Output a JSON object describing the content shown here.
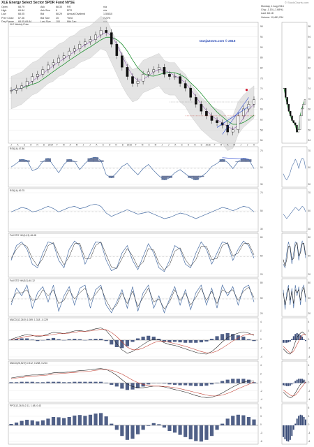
{
  "header": {
    "title": "XLE Energy Select Sector SPDR Fund NYSE",
    "watermark": "© StockCharts.com",
    "quote_rows": [
      [
        "Open",
        "68.79",
        "Ask",
        "68.30",
        "P/E",
        "n/a"
      ],
      [
        "High",
        "69.84",
        "Ask Size",
        "6",
        "EPS",
        "n/a"
      ],
      [
        "Low",
        "68.05",
        "Bid",
        "68.29",
        "Annual Dividend",
        "1.50810"
      ],
      [
        "Prev Close",
        "67.36",
        "Bid Size",
        "25",
        "Yield",
        "2.22%"
      ],
      [
        "Day Range",
        "68.05-69.84",
        "Last Size",
        "100",
        "Mkt Cap",
        "n/a"
      ]
    ],
    "right_quote": [
      "Monday, 1 Aug 2016",
      "Chg: -1.15 (-1.68%)",
      "Last: 68.18",
      "Volume: 19,481,234"
    ]
  },
  "overlay_tag": "DanjaZown.com © 2016",
  "panels": [
    {
      "label": "XLE Weekly Price",
      "ticks": [
        "98",
        "94",
        "90",
        "86",
        "82",
        "78",
        "74",
        "70",
        "66",
        "62",
        "58",
        "54"
      ]
    },
    {
      "label": "RSI(14) 47.86",
      "ticks": [
        "70",
        "50",
        "30"
      ]
    },
    {
      "label": "RSI(14) 49.75",
      "ticks": [
        "70",
        "50",
        "30"
      ]
    },
    {
      "label": "Full STO %K(14,3) 46.48",
      "ticks": [
        "80",
        "50",
        "20"
      ]
    },
    {
      "label": "Full STO %K(5,3) 40.12",
      "ticks": [
        "80",
        "50",
        "20"
      ]
    },
    {
      "label": "MACD(12,26,9) 1.089, 1.318, -0.229",
      "ticks": [
        "4",
        "2",
        "0",
        "-2",
        "-4"
      ]
    },
    {
      "label": "MACD(26,52,9) 0.512, 0.268, 0.244",
      "ticks": [
        "4",
        "2",
        "0",
        "-2",
        "-4"
      ]
    },
    {
      "label": "PPO(12,26,9) 2.11, 1.68, 0.43",
      "ticks": [
        "6",
        "3",
        "0",
        "-3",
        "-6"
      ]
    }
  ],
  "x_axis": {
    "months": [
      "J",
      "A",
      "S",
      "O",
      "N",
      "D",
      "2014",
      "F",
      "M",
      "A",
      "M",
      "J",
      "J",
      "A",
      "S",
      "O",
      "N",
      "D",
      "2015",
      "F",
      "M",
      "A",
      "M",
      "J",
      "J",
      "A",
      "S",
      "O",
      "N",
      "D",
      "2016",
      "F",
      "M",
      "A",
      "M",
      "J",
      "J",
      "A"
    ]
  },
  "chart_data": [
    {
      "type": "line",
      "title": "XLE Energy Select Sector SPDR Fund NYSE",
      "x": [
        0,
        8,
        16,
        24,
        32,
        40,
        48,
        56,
        64,
        72,
        80,
        88,
        96,
        104,
        112,
        120,
        128,
        136,
        144,
        152,
        160,
        168,
        176,
        184,
        192,
        200,
        208,
        216,
        224,
        232,
        240,
        248,
        256,
        264,
        272,
        280,
        288,
        296,
        304,
        312,
        320,
        328,
        336,
        344,
        352,
        360,
        368
      ],
      "series": [
        {
          "values": [
            73,
            74,
            75,
            77,
            79,
            80,
            82,
            84,
            85,
            87,
            88,
            90,
            91,
            93,
            94,
            95,
            97,
            99,
            98,
            93,
            88,
            83,
            79,
            76,
            77,
            80,
            81,
            82,
            83,
            80,
            79,
            79,
            76,
            74,
            70,
            67,
            64,
            62,
            60,
            59,
            58,
            55,
            56,
            62,
            65,
            67,
            69
          ]
        }
      ],
      "ylim": [
        52,
        100
      ]
    },
    {
      "type": "line",
      "title": "RSI(14) 47.86",
      "series": [
        {
          "values": [
            55,
            62,
            70,
            68,
            48,
            52,
            66,
            72,
            58,
            44,
            60,
            70,
            66,
            50,
            62,
            72,
            74,
            68,
            40,
            34,
            44,
            56,
            62,
            50,
            40,
            52,
            60,
            48,
            38,
            30,
            34,
            44,
            50,
            42,
            34,
            30,
            36,
            44,
            56,
            62,
            70,
            64,
            52,
            66,
            72,
            70,
            52
          ]
        }
      ],
      "ylim": [
        20,
        85
      ]
    },
    {
      "type": "line",
      "title": "RSI(14) 49.75",
      "series": [
        {
          "values": [
            52,
            56,
            60,
            58,
            52,
            54,
            58,
            62,
            58,
            52,
            56,
            60,
            62,
            58,
            60,
            64,
            66,
            62,
            50,
            44,
            48,
            52,
            56,
            52,
            48,
            50,
            52,
            48,
            44,
            40,
            42,
            46,
            50,
            48,
            44,
            40,
            44,
            48,
            52,
            56,
            60,
            58,
            54,
            58,
            62,
            60,
            52
          ]
        }
      ],
      "ylim": [
        20,
        85
      ]
    },
    {
      "type": "line",
      "title": "Full STO %K(14,3) 46.48",
      "series": [
        {
          "values": [
            40,
            80,
            90,
            70,
            30,
            20,
            60,
            90,
            85,
            40,
            20,
            70,
            92,
            80,
            30,
            60,
            90,
            88,
            40,
            12,
            20,
            60,
            80,
            40,
            15,
            50,
            85,
            60,
            20,
            10,
            40,
            80,
            70,
            30,
            20,
            60,
            90,
            70,
            30,
            60,
            90,
            85,
            40,
            70,
            92,
            80,
            46
          ]
        },
        {
          "values": [
            45,
            70,
            85,
            78,
            45,
            25,
            45,
            80,
            88,
            55,
            28,
            50,
            85,
            86,
            45,
            45,
            80,
            90,
            55,
            22,
            18,
            45,
            72,
            52,
            22,
            35,
            72,
            68,
            32,
            14,
            28,
            65,
            74,
            42,
            24,
            42,
            78,
            78,
            42,
            45,
            80,
            88,
            52,
            60,
            85,
            86,
            55
          ]
        }
      ],
      "ylim": [
        0,
        100
      ]
    },
    {
      "type": "line",
      "title": "Full STO %K(5,3) 40.12",
      "series": [
        {
          "values": [
            30,
            85,
            60,
            95,
            20,
            70,
            90,
            40,
            95,
            10,
            60,
            90,
            30,
            85,
            95,
            20,
            80,
            95,
            30,
            5,
            40,
            80,
            20,
            90,
            10,
            70,
            95,
            20,
            60,
            5,
            50,
            90,
            30,
            80,
            15,
            70,
            95,
            30,
            85,
            20,
            95,
            60,
            90,
            30,
            85,
            95,
            40
          ]
        },
        {
          "values": [
            40,
            70,
            70,
            80,
            45,
            50,
            80,
            60,
            80,
            35,
            45,
            80,
            50,
            70,
            85,
            45,
            65,
            88,
            45,
            15,
            30,
            70,
            35,
            75,
            25,
            55,
            85,
            40,
            50,
            18,
            40,
            80,
            45,
            70,
            30,
            55,
            85,
            45,
            75,
            35,
            80,
            70,
            80,
            45,
            75,
            88,
            55
          ]
        }
      ],
      "ylim": [
        0,
        100
      ]
    },
    {
      "type": "bar",
      "title": "MACD(12,26,9) 1.089, 1.318, -0.229",
      "series": [
        {
          "name": "MACD",
          "values": [
            0.2,
            0.6,
            1.0,
            1.3,
            1.1,
            0.8,
            1.0,
            1.4,
            1.8,
            1.7,
            1.5,
            1.8,
            2.1,
            2.2,
            2.0,
            2.3,
            2.6,
            2.8,
            2.2,
            0.8,
            -0.8,
            -2.2,
            -3.0,
            -2.6,
            -1.8,
            -1.0,
            -0.2,
            0.2,
            0.1,
            -0.6,
            -1.0,
            -1.2,
            -1.6,
            -2.0,
            -2.4,
            -2.8,
            -3.1,
            -3.2,
            -2.6,
            -1.6,
            -0.4,
            0.6,
            1.2,
            1.6,
            1.9,
            1.6,
            1.1
          ]
        },
        {
          "name": "Signal",
          "values": [
            0.1,
            0.3,
            0.6,
            0.9,
            1.0,
            1.0,
            1.0,
            1.1,
            1.3,
            1.5,
            1.5,
            1.6,
            1.8,
            2.0,
            2.0,
            2.1,
            2.3,
            2.5,
            2.4,
            1.8,
            0.8,
            -0.4,
            -1.6,
            -2.2,
            -2.2,
            -1.8,
            -1.2,
            -0.6,
            -0.2,
            -0.2,
            -0.5,
            -0.8,
            -1.1,
            -1.4,
            -1.8,
            -2.2,
            -2.6,
            -2.9,
            -2.9,
            -2.5,
            -1.8,
            -1.0,
            -0.2,
            0.5,
            1.1,
            1.4,
            1.3
          ]
        },
        {
          "name": "Histogram",
          "values": [
            0.1,
            0.3,
            0.4,
            0.4,
            0.1,
            -0.2,
            0.0,
            0.3,
            0.5,
            0.2,
            0.0,
            0.2,
            0.3,
            0.2,
            0.0,
            0.2,
            0.3,
            0.3,
            -0.2,
            -1.0,
            -1.6,
            -1.8,
            -1.4,
            -0.4,
            0.4,
            0.8,
            1.0,
            0.8,
            0.3,
            -0.4,
            -0.5,
            -0.4,
            -0.5,
            -0.6,
            -0.6,
            -0.6,
            -0.5,
            -0.3,
            0.3,
            0.9,
            1.4,
            1.6,
            1.4,
            1.1,
            0.8,
            0.2,
            -0.2
          ]
        }
      ],
      "ylim": [
        -4,
        4
      ]
    },
    {
      "type": "bar",
      "title": "MACD(26,52,9) 0.512, 0.268, 0.244",
      "series": [
        {
          "name": "MACD",
          "values": [
            1.2,
            1.4,
            1.6,
            1.8,
            1.9,
            1.9,
            2.0,
            2.2,
            2.4,
            2.5,
            2.5,
            2.6,
            2.8,
            2.9,
            3.0,
            3.1,
            3.3,
            3.4,
            3.2,
            2.6,
            1.8,
            0.8,
            -0.2,
            -0.8,
            -1.1,
            -1.1,
            -0.9,
            -0.7,
            -0.7,
            -0.9,
            -1.2,
            -1.5,
            -1.8,
            -2.1,
            -2.5,
            -2.9,
            -3.2,
            -3.4,
            -3.3,
            -2.9,
            -2.3,
            -1.6,
            -0.9,
            -0.3,
            0.2,
            0.5,
            0.5
          ]
        },
        {
          "name": "Signal",
          "values": [
            1.0,
            1.2,
            1.3,
            1.5,
            1.6,
            1.7,
            1.8,
            1.9,
            2.1,
            2.2,
            2.3,
            2.4,
            2.5,
            2.6,
            2.7,
            2.8,
            3.0,
            3.1,
            3.1,
            3.0,
            2.6,
            2.1,
            1.4,
            0.7,
            0.1,
            -0.3,
            -0.6,
            -0.7,
            -0.7,
            -0.8,
            -0.9,
            -1.1,
            -1.3,
            -1.6,
            -1.9,
            -2.2,
            -2.5,
            -2.8,
            -3.0,
            -3.0,
            -2.8,
            -2.4,
            -1.9,
            -1.3,
            -0.8,
            -0.3,
            0.3
          ]
        },
        {
          "name": "Histogram",
          "values": [
            0.2,
            0.2,
            0.3,
            0.3,
            0.3,
            0.2,
            0.2,
            0.3,
            0.3,
            0.3,
            0.2,
            0.2,
            0.3,
            0.3,
            0.3,
            0.3,
            0.3,
            0.3,
            0.1,
            -0.4,
            -0.8,
            -1.3,
            -1.6,
            -1.5,
            -1.2,
            -0.8,
            -0.3,
            0.0,
            0.0,
            -0.1,
            -0.3,
            -0.4,
            -0.5,
            -0.5,
            -0.6,
            -0.7,
            -0.7,
            -0.6,
            -0.3,
            0.1,
            0.5,
            0.8,
            1.0,
            1.0,
            1.0,
            0.8,
            0.2
          ]
        }
      ],
      "ylim": [
        -4,
        4
      ]
    },
    {
      "type": "bar",
      "title": "PPO(12,26,9) 2.11, 1.68, 0.43",
      "series": [
        {
          "name": "Histogram",
          "values": [
            0.5,
            1.0,
            1.6,
            2.0,
            1.8,
            1.4,
            1.8,
            2.4,
            3.0,
            2.9,
            2.6,
            3.0,
            3.5,
            3.7,
            3.4,
            3.8,
            4.2,
            4.4,
            3.2,
            0.6,
            -1.6,
            -3.8,
            -5.2,
            -4.8,
            -3.2,
            -1.6,
            -0.2,
            0.8,
            0.4,
            -0.8,
            -2.0,
            -2.6,
            -3.4,
            -4.2,
            -5.0,
            -5.6,
            -5.8,
            -5.2,
            -3.8,
            -1.6,
            0.6,
            2.4,
            3.4,
            3.8,
            3.6,
            3.0,
            2.1
          ]
        }
      ],
      "ylim": [
        -6,
        6
      ]
    }
  ]
}
